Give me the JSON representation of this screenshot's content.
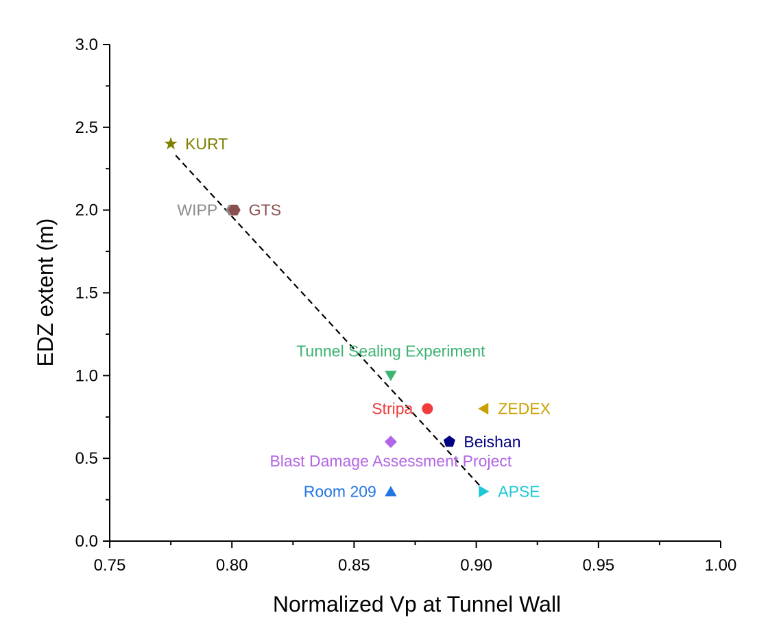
{
  "chart_data": {
    "type": "scatter",
    "title": "",
    "xlabel": "Normalized Vp at Tunnel Wall",
    "ylabel": "EDZ extent (m)",
    "xlim": [
      0.75,
      1.0
    ],
    "ylim": [
      0.0,
      3.0
    ],
    "grid": false,
    "x_ticks": [
      {
        "value": 0.75,
        "label": "0.75"
      },
      {
        "value": 0.8,
        "label": "0.80"
      },
      {
        "value": 0.85,
        "label": "0.85"
      },
      {
        "value": 0.9,
        "label": "0.90"
      },
      {
        "value": 0.95,
        "label": "0.95"
      },
      {
        "value": 1.0,
        "label": "1.00"
      }
    ],
    "y_ticks": [
      {
        "value": 0.0,
        "label": "0.0"
      },
      {
        "value": 0.5,
        "label": "0.5"
      },
      {
        "value": 1.0,
        "label": "1.0"
      },
      {
        "value": 1.5,
        "label": "1.5"
      },
      {
        "value": 2.0,
        "label": "2.0"
      },
      {
        "value": 2.5,
        "label": "2.5"
      },
      {
        "value": 3.0,
        "label": "3.0"
      }
    ],
    "points": [
      {
        "name": "KURT",
        "x": 0.775,
        "y": 2.4,
        "marker": "star",
        "color": "#808000",
        "label_pos": "right"
      },
      {
        "name": "WIPP",
        "x": 0.8,
        "y": 2.0,
        "marker": "hexagon",
        "color": "#8c8c8c",
        "label_pos": "left"
      },
      {
        "name": "GTS",
        "x": 0.801,
        "y": 2.0,
        "marker": "hexagon",
        "color": "#8b4f4f",
        "label_pos": "right"
      },
      {
        "name": "Tunnel Sealing Experiment",
        "x": 0.865,
        "y": 1.0,
        "marker": "triangle-down",
        "color": "#3cb371",
        "label_pos": "above"
      },
      {
        "name": "Stripa",
        "x": 0.88,
        "y": 0.8,
        "marker": "circle",
        "color": "#ef3b3b",
        "label_pos": "left"
      },
      {
        "name": "ZEDEX",
        "x": 0.903,
        "y": 0.8,
        "marker": "triangle-left",
        "color": "#c8a000",
        "label_pos": "right"
      },
      {
        "name": "Beishan",
        "x": 0.889,
        "y": 0.6,
        "marker": "pentagon",
        "color": "#000080",
        "label_pos": "right"
      },
      {
        "name": "Blast Damage Assessment Project",
        "x": 0.865,
        "y": 0.6,
        "marker": "diamond",
        "color": "#b266e6",
        "label_pos": "below"
      },
      {
        "name": "Room 209",
        "x": 0.865,
        "y": 0.3,
        "marker": "triangle-up",
        "color": "#2176e3",
        "label_pos": "left"
      },
      {
        "name": "APSE",
        "x": 0.903,
        "y": 0.3,
        "marker": "triangle-right",
        "color": "#1cc8d8",
        "label_pos": "right"
      }
    ],
    "trend_line": {
      "style": "dashed",
      "color": "#000000",
      "x": [
        0.777,
        0.903
      ],
      "y": [
        2.33,
        0.31
      ]
    }
  }
}
